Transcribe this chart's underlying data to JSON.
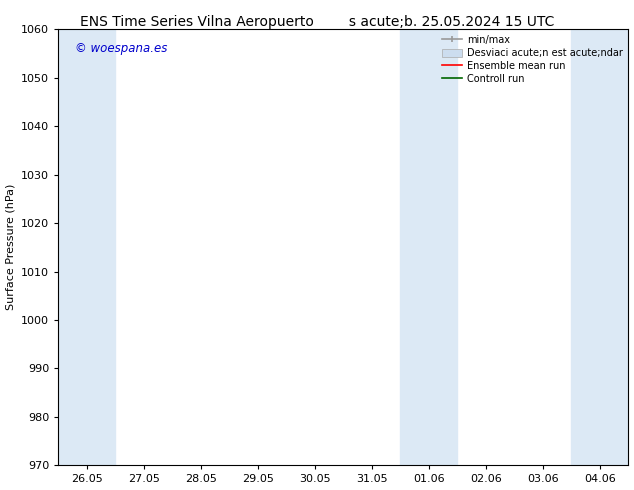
{
  "title_left": "ENS Time Series Vilna Aeropuerto",
  "title_right": "s acute;b. 25.05.2024 15 UTC",
  "xlabel": "",
  "ylabel": "Surface Pressure (hPa)",
  "ylim": [
    970,
    1060
  ],
  "yticks": [
    970,
    980,
    990,
    1000,
    1010,
    1020,
    1030,
    1040,
    1050,
    1060
  ],
  "x_tick_labels": [
    "26.05",
    "27.05",
    "28.05",
    "29.05",
    "30.05",
    "31.05",
    "01.06",
    "02.06",
    "03.06",
    "04.06"
  ],
  "x_tick_positions": [
    0,
    1,
    2,
    3,
    4,
    5,
    6,
    7,
    8,
    9
  ],
  "xlim": [
    -0.5,
    9.5
  ],
  "shaded_bands": [
    {
      "x_start": -0.5,
      "x_end": 0.5
    },
    {
      "x_start": 5.5,
      "x_end": 6.5
    },
    {
      "x_start": 8.5,
      "x_end": 9.5
    }
  ],
  "shaded_color": "#dce9f5",
  "watermark_text": "© woespana.es",
  "watermark_color": "#0000cc",
  "legend_labels": [
    "min/max",
    "Desviaci acute;n est acute;ndar",
    "Ensemble mean run",
    "Controll run"
  ],
  "legend_colors_line": [
    "#aaaaaa",
    "#bbccdd",
    "#ff0000",
    "#00aa00"
  ],
  "background_color": "#ffffff",
  "plot_bg_color": "#ffffff",
  "border_color": "#000000",
  "title_fontsize": 10,
  "axis_label_fontsize": 8,
  "tick_fontsize": 8,
  "legend_fontsize": 7
}
